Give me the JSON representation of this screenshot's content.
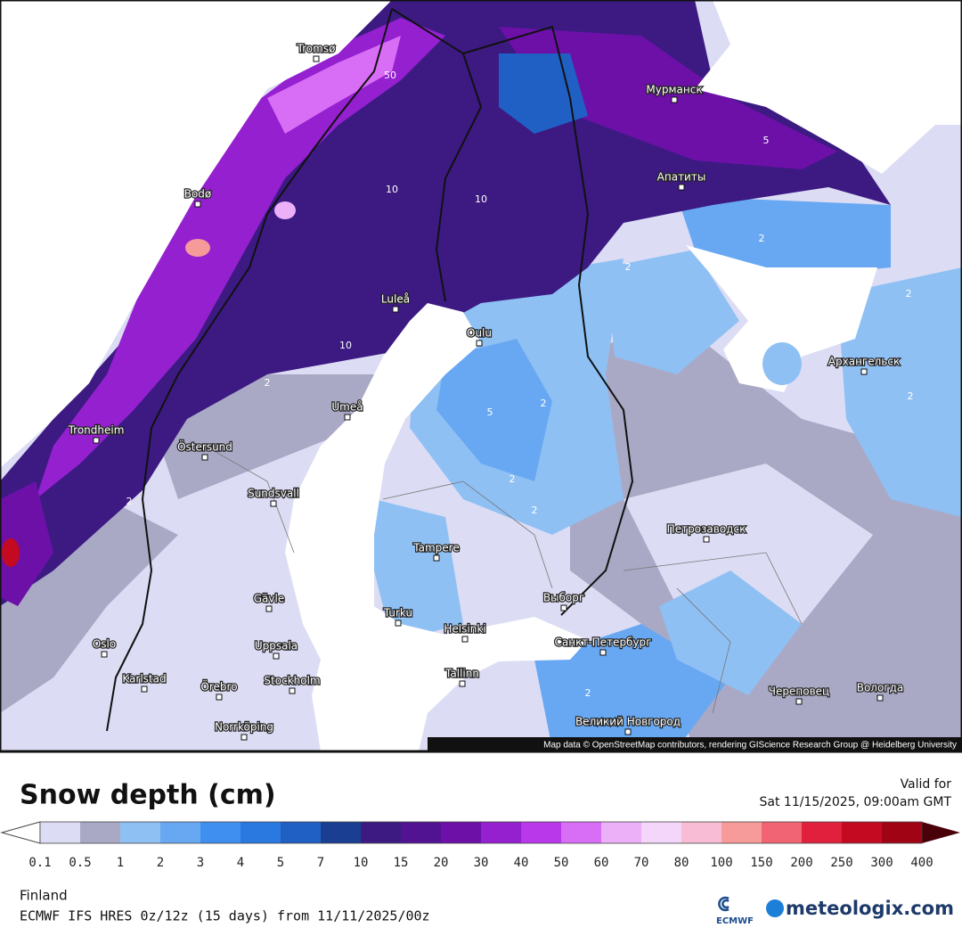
{
  "map": {
    "cities": [
      "Tromsø",
      "Мурманск",
      "Bodø",
      "Апатиты",
      "Luleå",
      "Oulu",
      "Архангельск",
      "Umeå",
      "Trondheim",
      "Östersund",
      "Sundsvall",
      "Петрозаводск",
      "Tampere",
      "Выборг",
      "Gävle",
      "Turku",
      "Helsinki",
      "Oslo",
      "Uppsala",
      "Санкт-Петербург",
      "Karlstad",
      "Örebro",
      "Stockholm",
      "Tallinn",
      "Череповец",
      "Вологда",
      "Norrköping",
      "Великий Новгород"
    ],
    "contour_labels": [
      50,
      10,
      10,
      5,
      2,
      2,
      2,
      2,
      5,
      2,
      2,
      2,
      2,
      2,
      2,
      10
    ],
    "attribution": "Map data © OpenStreetMap contributors, rendering GIScience Research Group @ Heidelberg University"
  },
  "legend": {
    "title": "Snow depth (cm)",
    "valid_label": "Valid for",
    "valid_time": "Sat 11/15/2025, 09:00am GMT",
    "below_color": "#ffffff",
    "above_color": "#4a0008",
    "colors": [
      "#dcdcf4",
      "#a9a9c6",
      "#8fc0f4",
      "#68a8f2",
      "#3f8ff0",
      "#2a79e0",
      "#2060c4",
      "#1a3f92",
      "#3c1a82",
      "#521392",
      "#6c10a8",
      "#9420d0",
      "#b838ea",
      "#d86ef6",
      "#ecb0f8",
      "#f4d6fa",
      "#f8bcd4",
      "#f69a9a",
      "#f06474",
      "#e0203c",
      "#c40a20",
      "#a00414",
      "#800010"
    ],
    "ticks": [
      0.1,
      0.5,
      1,
      2,
      3,
      4,
      5,
      7,
      10,
      15,
      20,
      30,
      40,
      50,
      60,
      70,
      80,
      100,
      150,
      200,
      250,
      300,
      400
    ]
  },
  "footer": {
    "region": "Finland",
    "model": "ECMWF IFS HRES 0z/12z (15 days) from 11/11/2025/00z",
    "ecmwf": "ECMWF",
    "brand": "meteologix.com"
  }
}
